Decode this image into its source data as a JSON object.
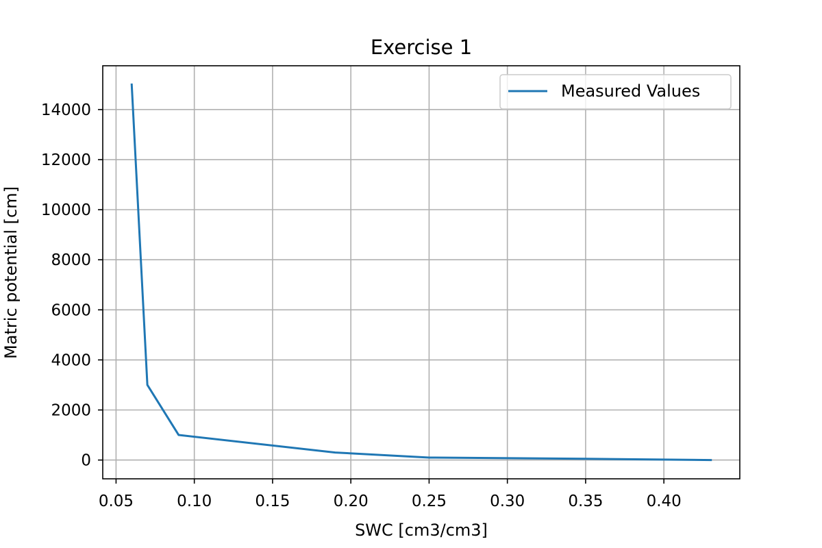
{
  "chart_data": {
    "type": "line",
    "title": "Exercise 1",
    "xlabel": "SWC [cm3/cm3]",
    "ylabel": "Matric potential [cm]",
    "xlim": [
      0.0415,
      0.4485
    ],
    "ylim": [
      -750,
      15750
    ],
    "xticks": [
      0.05,
      0.1,
      0.15,
      0.2,
      0.25,
      0.3,
      0.35,
      0.4
    ],
    "xtick_labels": [
      "0.05",
      "0.10",
      "0.15",
      "0.20",
      "0.25",
      "0.30",
      "0.35",
      "0.40"
    ],
    "yticks": [
      0,
      2000,
      4000,
      6000,
      8000,
      10000,
      12000,
      14000
    ],
    "ytick_labels": [
      "0",
      "2000",
      "4000",
      "6000",
      "8000",
      "10000",
      "12000",
      "14000"
    ],
    "grid": true,
    "legend_position": "upper right",
    "series": [
      {
        "name": "Measured Values",
        "color": "#1f77b4",
        "x": [
          0.06,
          0.07,
          0.09,
          0.19,
          0.25,
          0.35,
          0.43
        ],
        "y": [
          15000,
          3000,
          1000,
          300,
          100,
          50,
          0
        ]
      }
    ]
  }
}
